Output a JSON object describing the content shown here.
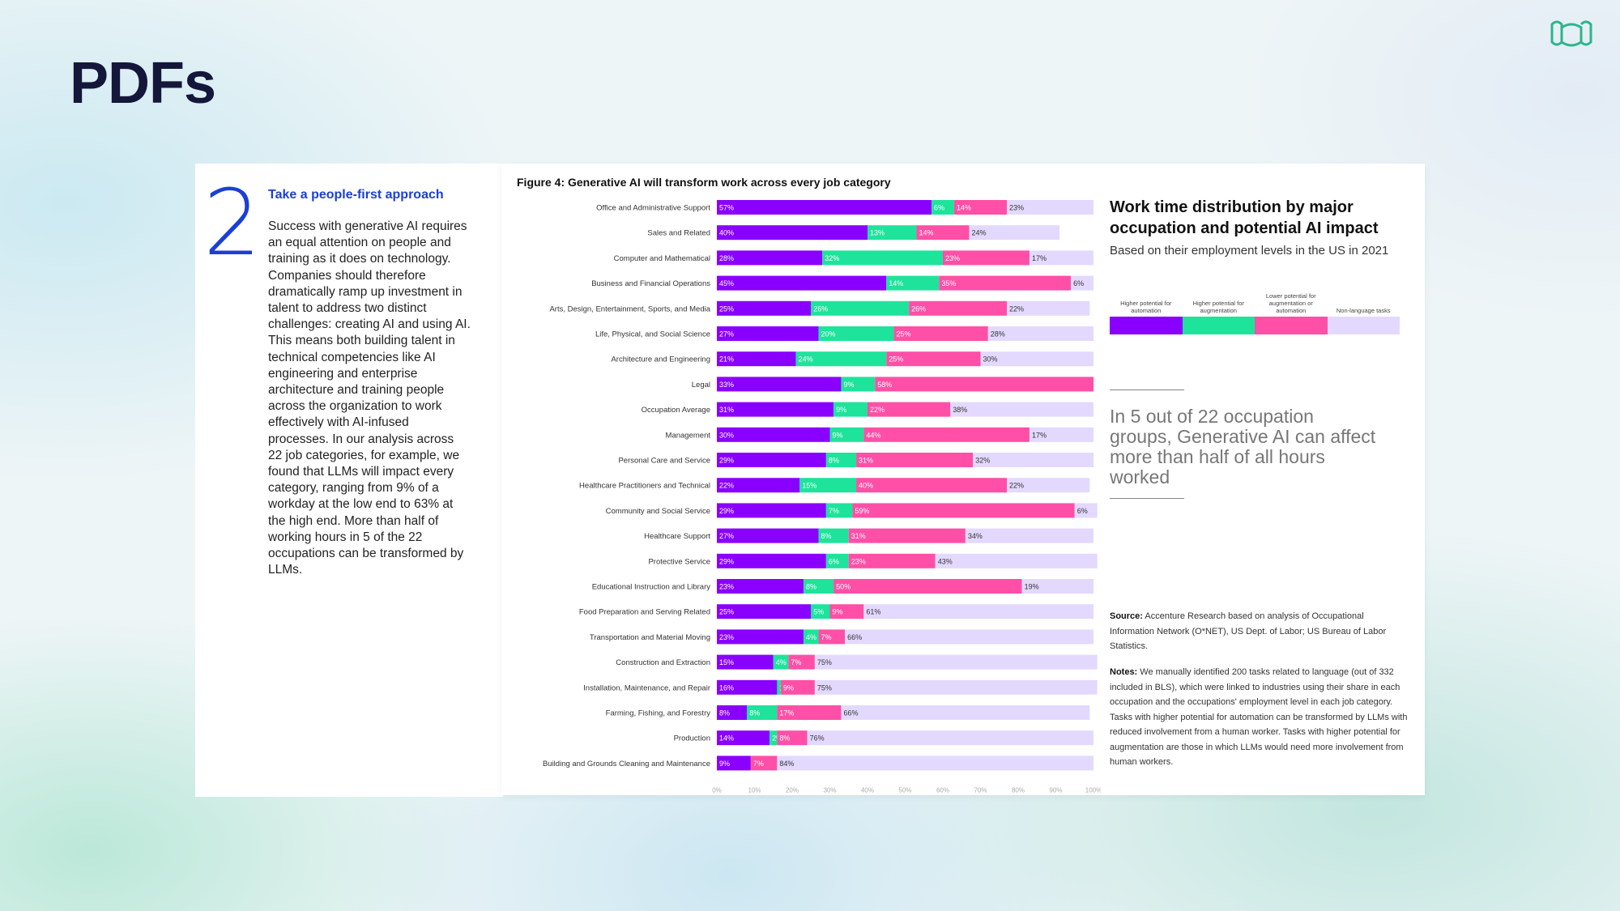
{
  "page": {
    "title": "PDFs",
    "logo_icon": "brand-logo-icon"
  },
  "left_card": {
    "number": "2",
    "heading": "Take a people-first approach",
    "body": "Success with generative AI requires an equal attention on people and training as it does on technology. Companies should therefore dramatically ramp up investment in talent to address two distinct challenges: creating AI and using AI. This means both building talent in technical competencies like AI engineering and enterprise architecture and training people across the organization to work effectively with AI-infused processes. In our analysis across 22 job categories, for example, we found that LLMs will impact every category, ranging from 9% of a workday at the low end to 63% at the high end. More than half of working hours in 5 of the 22 occupations can be transformed by LLMs."
  },
  "figure": {
    "title": "Figure 4: Generative AI will transform work across every job category",
    "side_title": "Work time distribution by major occupation and potential AI impact",
    "side_subtitle": "Based on their employment levels in the US in 2021",
    "callout": "In 5 out of 22 occupation groups, Generative AI can affect more than half of all hours worked",
    "source_label": "Source:",
    "source_text": "Accenture Research based on analysis of Occupational Information Network (O*NET), US Dept. of Labor; US Bureau of Labor Statistics.",
    "notes_label": "Notes:",
    "notes_text": "We manually identified 200 tasks related to language (out of 332 included in BLS), which were linked to industries using their share in each occupation and the occupations' employment level in each job category. Tasks with higher potential for automation can be transformed by LLMs with reduced involvement from a human worker. Tasks with higher potential for augmentation are those in which LLMs would need more involvement from human workers."
  },
  "chart_data": {
    "type": "bar",
    "orientation": "horizontal",
    "stacked": true,
    "percent_stacked": true,
    "xlim": [
      0,
      100
    ],
    "x_ticks": [
      "0%",
      "10%",
      "20%",
      "30%",
      "40%",
      "50%",
      "60%",
      "70%",
      "80%",
      "90%",
      "100%"
    ],
    "categories": [
      "Office and Administrative Support",
      "Sales and Related",
      "Computer and Mathematical",
      "Business and Financial Operations",
      "Arts, Design, Entertainment, Sports, and Media",
      "Life, Physical, and Social Science",
      "Architecture and Engineering",
      "Legal",
      "Occupation Average",
      "Management",
      "Personal Care and Service",
      "Healthcare Practitioners and Technical",
      "Community and Social Service",
      "Healthcare Support",
      "Protective Service",
      "Educational Instruction and Library",
      "Food Preparation and Serving Related",
      "Transportation and Material Moving",
      "Construction and Extraction",
      "Installation, Maintenance, and Repair",
      "Farming, Fishing, and Forestry",
      "Production",
      "Building and Grounds Cleaning and Maintenance"
    ],
    "series": [
      {
        "name": "Higher potential for automation",
        "color": "#8a00ff",
        "values": [
          57,
          40,
          28,
          45,
          25,
          27,
          21,
          33,
          31,
          30,
          29,
          22,
          29,
          27,
          29,
          23,
          25,
          23,
          15,
          16,
          8,
          14,
          9
        ]
      },
      {
        "name": "Higher potential for augmentation",
        "color": "#1ee39b",
        "values": [
          6,
          13,
          32,
          14,
          26,
          20,
          24,
          9,
          9,
          9,
          8,
          15,
          7,
          8,
          6,
          8,
          5,
          4,
          4,
          1,
          8,
          2,
          0
        ]
      },
      {
        "name": "Lower potential for augmentation or automation",
        "color": "#ff4fa7",
        "values": [
          14,
          14,
          23,
          35,
          26,
          25,
          25,
          58,
          22,
          44,
          31,
          40,
          59,
          31,
          23,
          50,
          9,
          7,
          7,
          9,
          17,
          8,
          7
        ]
      },
      {
        "name": "Non-language tasks",
        "color": "#e3d9ff",
        "values": [
          23,
          24,
          17,
          6,
          22,
          28,
          30,
          0,
          38,
          17,
          32,
          22,
          6,
          34,
          43,
          19,
          61,
          66,
          75,
          75,
          66,
          76,
          84
        ]
      }
    ],
    "legend": [
      {
        "label": "Higher potential for automation",
        "color": "#8a00ff"
      },
      {
        "label": "Higher potential for augmentation",
        "color": "#1ee39b"
      },
      {
        "label": "Lower potential for augmentation or automation",
        "color": "#ff4fa7"
      },
      {
        "label": "Non-language tasks",
        "color": "#e3d9ff"
      }
    ]
  }
}
